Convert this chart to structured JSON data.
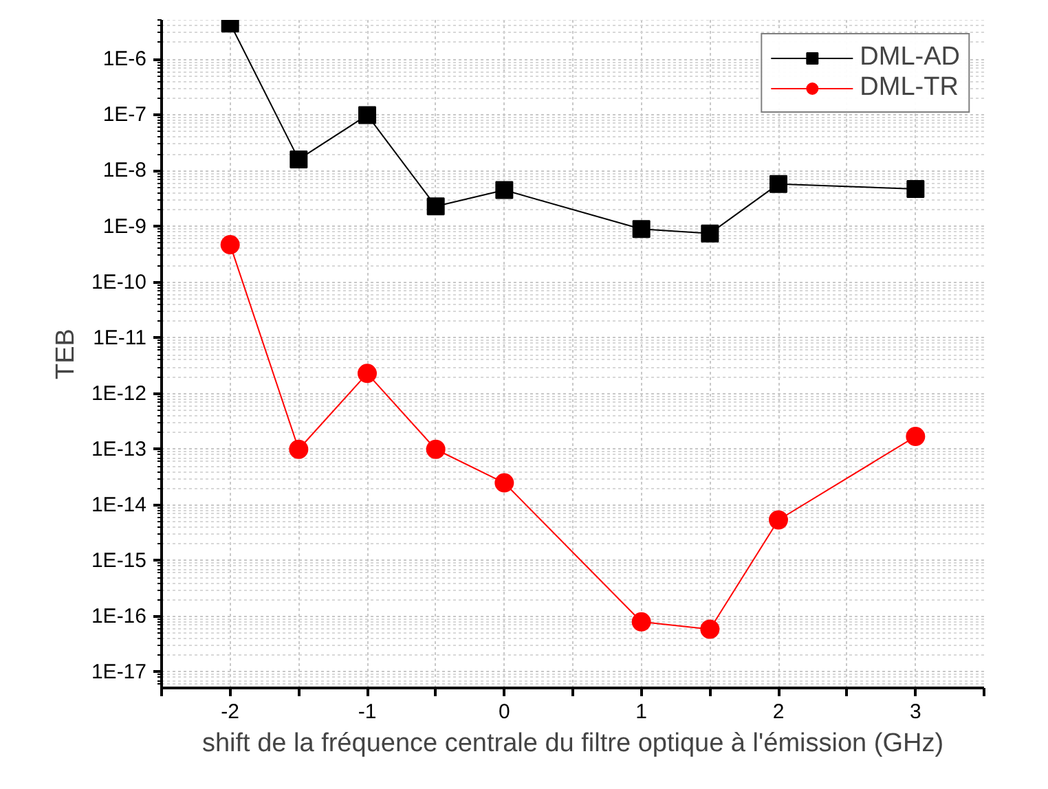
{
  "chart_data": {
    "type": "line",
    "xlabel": "shift de la fréquence centrale du filtre optique à l'émission (GHz)",
    "ylabel": "TEB",
    "x": [
      -2,
      -1.5,
      -1,
      -0.5,
      0,
      1,
      1.5,
      2,
      3
    ],
    "series": [
      {
        "name": "DML-AD",
        "color": "#000000",
        "marker": "square",
        "values": [
          4.4e-06,
          1.6e-08,
          1e-07,
          2.3e-09,
          4.5e-09,
          9e-10,
          7.5e-10,
          5.8e-09,
          4.7e-09
        ]
      },
      {
        "name": "DML-TR",
        "color": "#ff0000",
        "marker": "circle",
        "values": [
          4.7e-10,
          1e-13,
          2.3e-12,
          1e-13,
          2.5e-14,
          8e-17,
          5.9e-17,
          5.4e-15,
          1.7e-13
        ]
      }
    ],
    "log": "y",
    "xlim": [
      -2.5,
      3.5
    ],
    "ylim": [
      5.2e-18,
      5.1e-06
    ],
    "xticks": [
      {
        "value": -2.5,
        "label": null
      },
      -2,
      {
        "value": -1.5,
        "label": null
      },
      -1,
      {
        "value": -0.5,
        "label": null
      },
      0,
      {
        "value": 0.5,
        "label": null
      },
      1,
      {
        "value": 1.5,
        "label": null
      },
      2,
      {
        "value": 2.5,
        "label": null
      },
      3,
      {
        "value": 3.5,
        "label": null
      }
    ],
    "yticks": [
      {
        "value": 1e-17,
        "label": "1E-17"
      },
      {
        "value": 1e-16,
        "label": "1E-16"
      },
      {
        "value": 1e-15,
        "label": "1E-15"
      },
      {
        "value": 1e-14,
        "label": "1E-14"
      },
      {
        "value": 1e-13,
        "label": "1E-13"
      },
      {
        "value": 1e-12,
        "label": "1E-12"
      },
      {
        "value": 1e-11,
        "label": "1E-11"
      },
      {
        "value": 1e-10,
        "label": "1E-10"
      },
      {
        "value": 1e-09,
        "label": "1E-9"
      },
      {
        "value": 1e-08,
        "label": "1E-8"
      },
      {
        "value": 1e-07,
        "label": "1E-7"
      },
      {
        "value": 1e-06,
        "label": "1E-6"
      }
    ],
    "grid": true,
    "legend": "top right",
    "line_style": "solid"
  }
}
